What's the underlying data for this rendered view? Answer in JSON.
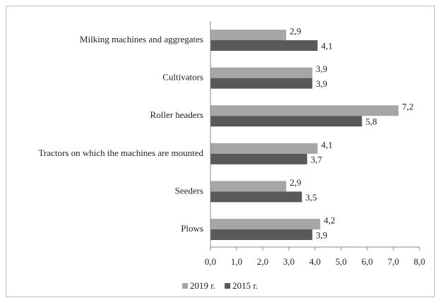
{
  "chart_data": {
    "type": "hbar",
    "categories": [
      "Milking machines and aggregates",
      "Cultivators",
      "Roller headers",
      "Tractors on which the machines are mounted",
      "Seeders",
      "Plows"
    ],
    "series": [
      {
        "name": "2019 r.",
        "color": "#a6a6a6",
        "values": [
          2.9,
          3.9,
          7.2,
          4.1,
          2.9,
          4.2
        ],
        "value_labels": [
          "2,9",
          "3,9",
          "7,2",
          "4,1",
          "2,9",
          "4,2"
        ]
      },
      {
        "name": "2015 r.",
        "color": "#595959",
        "values": [
          4.1,
          3.9,
          5.8,
          3.7,
          3.5,
          3.9
        ],
        "value_labels": [
          "4,1",
          "3,9",
          "5,8",
          "3,7",
          "3,5",
          "3,9"
        ]
      }
    ],
    "xlim": [
      0,
      8
    ],
    "xticks": [
      {
        "value": 0,
        "label": "0,0"
      },
      {
        "value": 1,
        "label": "1,0"
      },
      {
        "value": 2,
        "label": "2,0"
      },
      {
        "value": 3,
        "label": "3,0"
      },
      {
        "value": 4,
        "label": "4,0"
      },
      {
        "value": 5,
        "label": "5,0"
      },
      {
        "value": 6,
        "label": "6,0"
      },
      {
        "value": 7,
        "label": "7,0"
      },
      {
        "value": 8,
        "label": "8,0"
      }
    ],
    "legend": "bottom"
  }
}
